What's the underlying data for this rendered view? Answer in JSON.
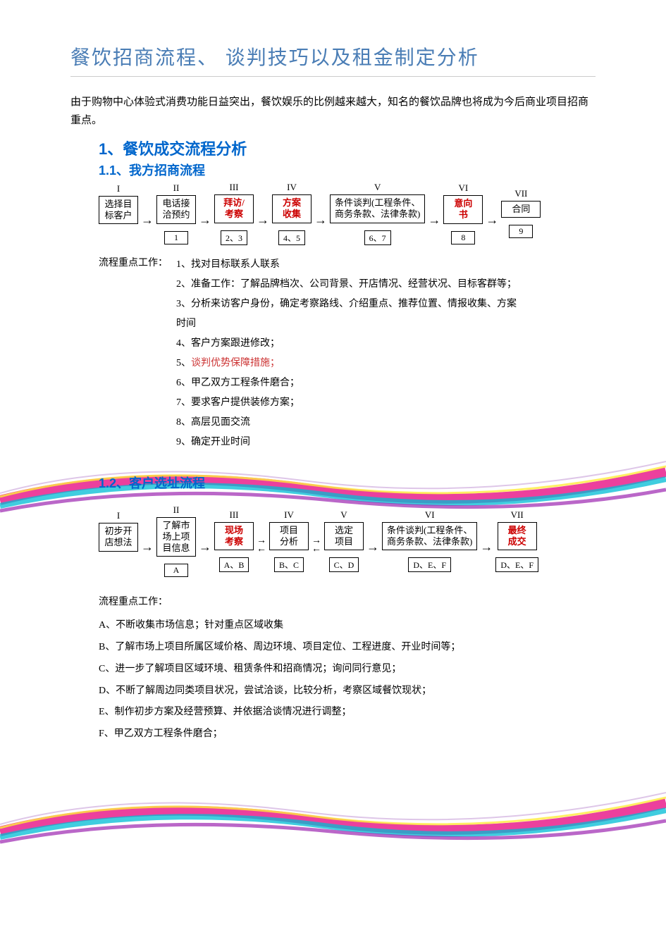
{
  "title": "餐饮招商流程、 谈判技巧以及租金制定分析",
  "intro": "由于购物中心体验式消费功能日益突出，餐饮娱乐的比例越来越大，知名的餐饮品牌也将成为今后商业项目招商重点。",
  "section1": {
    "heading": "1、餐饮成交流程分析",
    "sub1": {
      "heading": "1.1、我方招商流程",
      "flow": {
        "romans": [
          "I",
          "II",
          "III",
          "IV",
          "V",
          "VI",
          "VII"
        ],
        "nodes": [
          {
            "lines": [
              "选择目",
              "标客户"
            ],
            "red": false
          },
          {
            "lines": [
              "电话接",
              "洽预约"
            ],
            "red": false
          },
          {
            "lines": [
              "拜访/",
              "考察"
            ],
            "red": true
          },
          {
            "lines": [
              "方案",
              "收集"
            ],
            "red": true
          },
          {
            "lines": [
              "条件谈判(工程条件、",
              "商务条款、法律条款)"
            ],
            "red": false
          },
          {
            "lines": [
              "意向",
              "书"
            ],
            "red": true
          },
          {
            "lines": [
              "合同"
            ],
            "red": false
          }
        ],
        "sub_boxes": [
          "",
          "1",
          "2、3",
          "4、5",
          "6、7",
          "8",
          "9"
        ]
      },
      "work_label": "流程重点工作：",
      "work_items": [
        {
          "text": "1、找对目标联系人联系",
          "red": false
        },
        {
          "text": "2、准备工作：了解品牌档次、公司背景、开店情况、经营状况、目标客群等；",
          "red": false
        },
        {
          "text": "3、分析来访客户身份，确定考察路线、介绍重点、推荐位置、情报收集、方案",
          "red": false
        },
        {
          "text": "时间",
          "red": false
        },
        {
          "text": "4、客户方案跟进修改；",
          "red": false
        },
        {
          "text": "5、谈判优势保障措施；",
          "red": true
        },
        {
          "text": "6、甲乙双方工程条件磨合；",
          "red": false
        },
        {
          "text": "7、要求客户提供装修方案；",
          "red": false
        },
        {
          "text": "8、高层见面交流",
          "red": false
        },
        {
          "text": "9、确定开业时间",
          "red": false
        }
      ]
    },
    "sub2": {
      "heading": "1.2、客户选址流程",
      "flow": {
        "romans": [
          "I",
          "II",
          "III",
          "IV",
          "V",
          "VI",
          "VII"
        ],
        "nodes": [
          {
            "lines": [
              "初步开",
              "店想法"
            ],
            "red": false
          },
          {
            "lines": [
              "了解市",
              "场上项",
              "目信息"
            ],
            "red": false
          },
          {
            "lines": [
              "现场",
              "考察"
            ],
            "red": true
          },
          {
            "lines": [
              "项目",
              "分析"
            ],
            "red": false
          },
          {
            "lines": [
              "选定",
              "项目"
            ],
            "red": false
          },
          {
            "lines": [
              "条件谈判(工程条件、",
              "商务条款、法律条款)"
            ],
            "red": false
          },
          {
            "lines": [
              "最终",
              "成交"
            ],
            "red": true
          }
        ],
        "sub_boxes": [
          "",
          "A",
          "A、B",
          "B、C",
          "C、D",
          "D、E、F",
          "D、E、F"
        ]
      },
      "work_label": "流程重点工作：",
      "work_items": [
        {
          "text": "A、不断收集市场信息；针对重点区域收集",
          "red": false
        },
        {
          "text": "B、了解市场上项目所属区域价格、周边环境、项目定位、工程进度、开业时间等；",
          "red": false
        },
        {
          "text": "C、进一步了解项目区域环境、租赁条件和招商情况；询问同行意见；",
          "red": false
        },
        {
          "text": "D、不断了解周边同类项目状况，尝试洽谈，比较分析，考察区域餐饮现状；",
          "red": false
        },
        {
          "text": "E、制作初步方案及经营预算、并依据洽谈情况进行调整；",
          "red": false
        },
        {
          "text": "F、甲乙双方工程条件磨合；",
          "red": false
        }
      ]
    }
  },
  "colors": {
    "title": "#4a7db5",
    "heading": "#0066cc",
    "red": "#cc0000",
    "swoosh": [
      "#e91e8c",
      "#00bcd4",
      "#9c27b0",
      "#ffeb3b"
    ]
  }
}
